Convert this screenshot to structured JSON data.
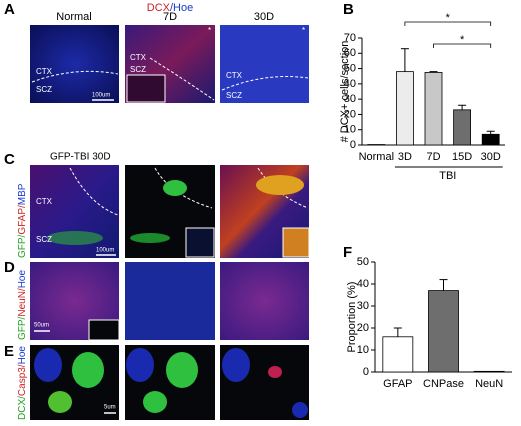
{
  "panel_letters": [
    "A",
    "B",
    "C",
    "D",
    "E",
    "F"
  ],
  "panel_a": {
    "header": [
      "DCX",
      "/Hoe"
    ],
    "columns": [
      "Normal",
      "7D",
      "30D"
    ],
    "region_labels": [
      "CTX",
      "SCZ",
      "CTX",
      "SCZ",
      "CTX",
      "SCZ"
    ],
    "scale_bar": "100um",
    "stars": [
      "*",
      "*"
    ]
  },
  "panel_c": {
    "title": "GFP-TBI 30D",
    "side_label": [
      "GFP/",
      "GFAP/",
      "MBP"
    ],
    "region_labels": [
      "CTX",
      "SCZ"
    ],
    "scale_bar": "100um"
  },
  "panel_d": {
    "side_label": [
      "GFP/",
      "NeuN/",
      "Hoe"
    ],
    "scale_bar": "50um"
  },
  "panel_e": {
    "side_label": [
      "DCX/",
      "Casp3/",
      "Hoe"
    ],
    "scale_bar": "5um"
  },
  "chart_data": [
    {
      "type": "bar",
      "y_label": "# DCX+ cells/section",
      "categories": [
        "Normal",
        "3D",
        "7D",
        "15D",
        "30D"
      ],
      "values": [
        0.3,
        48,
        47.5,
        23,
        7
      ],
      "errors": [
        0,
        15,
        0.5,
        3,
        2
      ],
      "colors": [
        "#ffffff",
        "#ececec",
        "#c8c8c8",
        "#6e6e6e",
        "#000000"
      ],
      "group_label": "TBI",
      "annotations": [
        "*",
        "*"
      ],
      "ylim": [
        0,
        70
      ],
      "yticks": [
        0,
        10,
        20,
        30,
        40,
        50,
        60,
        70
      ]
    },
    {
      "type": "bar",
      "y_label": "Proportion (%)",
      "categories": [
        "GFAP",
        "CNPase",
        "NeuN"
      ],
      "values": [
        16,
        37,
        0.3
      ],
      "errors": [
        4,
        5,
        0
      ],
      "colors": [
        "#ffffff",
        "#6e6e6e",
        "#ffffff"
      ],
      "ylim": [
        0,
        50
      ],
      "yticks": [
        0,
        10,
        20,
        30,
        40,
        50
      ]
    }
  ]
}
